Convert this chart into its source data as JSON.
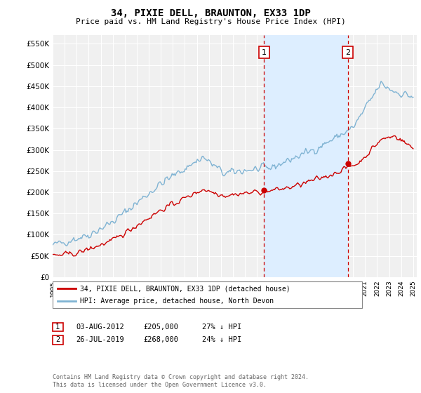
{
  "title": "34, PIXIE DELL, BRAUNTON, EX33 1DP",
  "subtitle": "Price paid vs. HM Land Registry's House Price Index (HPI)",
  "ylabel_ticks": [
    "£0",
    "£50K",
    "£100K",
    "£150K",
    "£200K",
    "£250K",
    "£300K",
    "£350K",
    "£400K",
    "£450K",
    "£500K",
    "£550K"
  ],
  "ytick_values": [
    0,
    50000,
    100000,
    150000,
    200000,
    250000,
    300000,
    350000,
    400000,
    450000,
    500000,
    550000
  ],
  "ylim": [
    0,
    570000
  ],
  "xlim_start": 1995.0,
  "xlim_end": 2025.3,
  "hpi_color": "#7fb3d3",
  "price_color": "#cc0000",
  "shade_color": "#ddeeff",
  "marker1_date": 2012.58,
  "marker1_price": 205000,
  "marker1_label": "1",
  "marker2_date": 2019.55,
  "marker2_price": 268000,
  "marker2_label": "2",
  "vline1_x": 2012.58,
  "vline2_x": 2019.55,
  "legend_price_label": "34, PIXIE DELL, BRAUNTON, EX33 1DP (detached house)",
  "legend_hpi_label": "HPI: Average price, detached house, North Devon",
  "annotation1_num": "1",
  "annotation1_date": "03-AUG-2012",
  "annotation1_price": "£205,000",
  "annotation1_hpi": "27% ↓ HPI",
  "annotation2_num": "2",
  "annotation2_date": "26-JUL-2019",
  "annotation2_price": "£268,000",
  "annotation2_hpi": "24% ↓ HPI",
  "footer": "Contains HM Land Registry data © Crown copyright and database right 2024.\nThis data is licensed under the Open Government Licence v3.0.",
  "background_color": "#ffffff",
  "plot_bg_color": "#f0f0f0",
  "grid_color": "#ffffff"
}
